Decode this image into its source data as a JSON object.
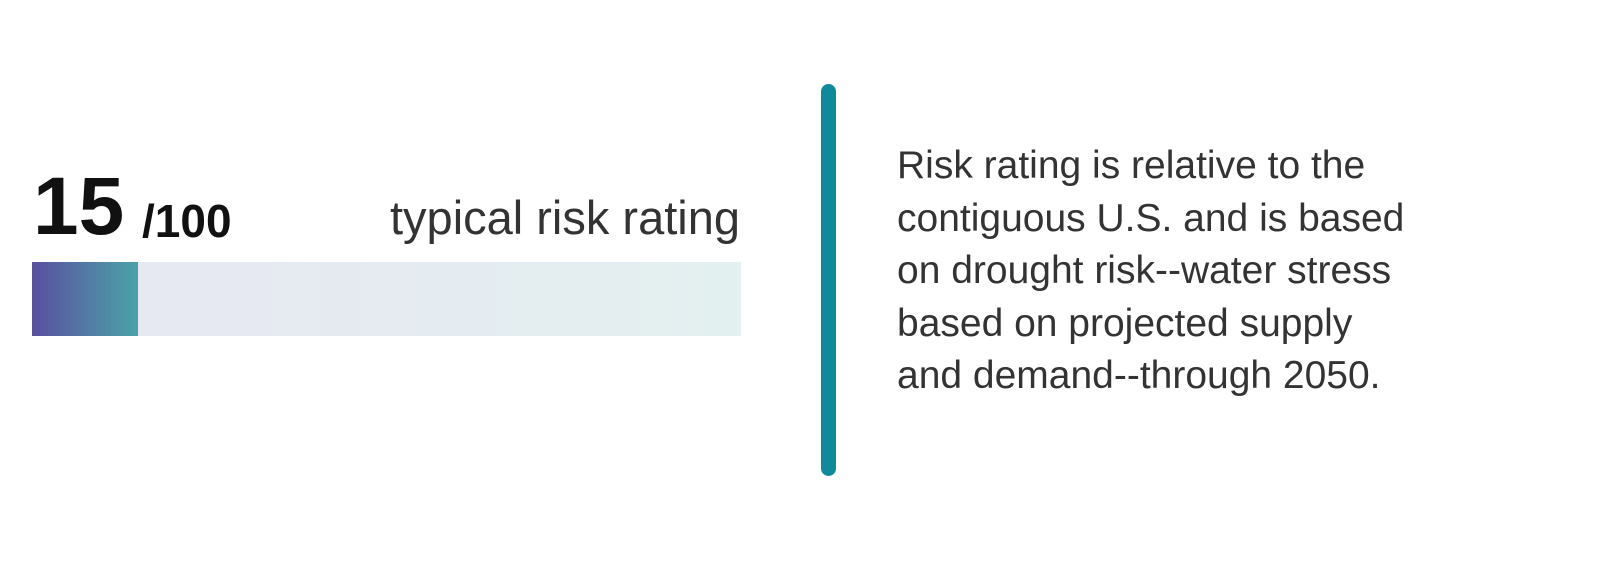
{
  "score": {
    "value": 15,
    "max": {
      "value": 100,
      "label": "/100"
    },
    "caption": "typical risk rating"
  },
  "description": {
    "lines": [
      "Risk rating is relative to the",
      "contiguous U.S. and is based",
      "on drought risk--water stress",
      "based on projected supply",
      "and demand--through 2050."
    ]
  }
}
